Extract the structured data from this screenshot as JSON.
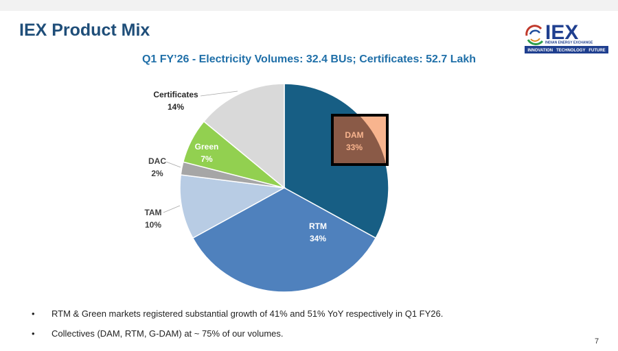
{
  "slide": {
    "title": "IEX Product Mix",
    "subtitle": "Q1 FY’26 - Electricity Volumes: 32.4 BUs; Certificates: 52.7 Lakh",
    "page_number": "7"
  },
  "logo": {
    "name": "IEX",
    "full_name": "INDIAN ENERGY EXCHANGE",
    "tagline": "INNOVATION   TECHNOLOGY   FUTURE"
  },
  "chart_data": {
    "type": "pie",
    "title": "Q1 FY’26 - Electricity Volumes: 32.4 BUs; Certificates: 52.7 Lakh",
    "start": "12 o'clock, clockwise",
    "highlighted": "DAM",
    "slices": [
      {
        "label": "DAM",
        "value": 33,
        "display": "33%",
        "color": "#175e84"
      },
      {
        "label": "RTM",
        "value": 34,
        "display": "34%",
        "color": "#4f81bd"
      },
      {
        "label": "TAM",
        "value": 10,
        "display": "10%",
        "color": "#b8cce4"
      },
      {
        "label": "DAC",
        "value": 2,
        "display": "2%",
        "color": "#a6a6a6"
      },
      {
        "label": "Green",
        "value": 7,
        "display": "7%",
        "color": "#92d050"
      },
      {
        "label": "Certificates",
        "value": 14,
        "display": "14%",
        "color": "#d9d9d9"
      }
    ]
  },
  "bullets": [
    "RTM & Green markets registered substantial growth of 41% and 51% YoY respectively in Q1 FY26.",
    "Collectives (DAM, RTM, G-DAM) at ~ 75% of our volumes."
  ]
}
